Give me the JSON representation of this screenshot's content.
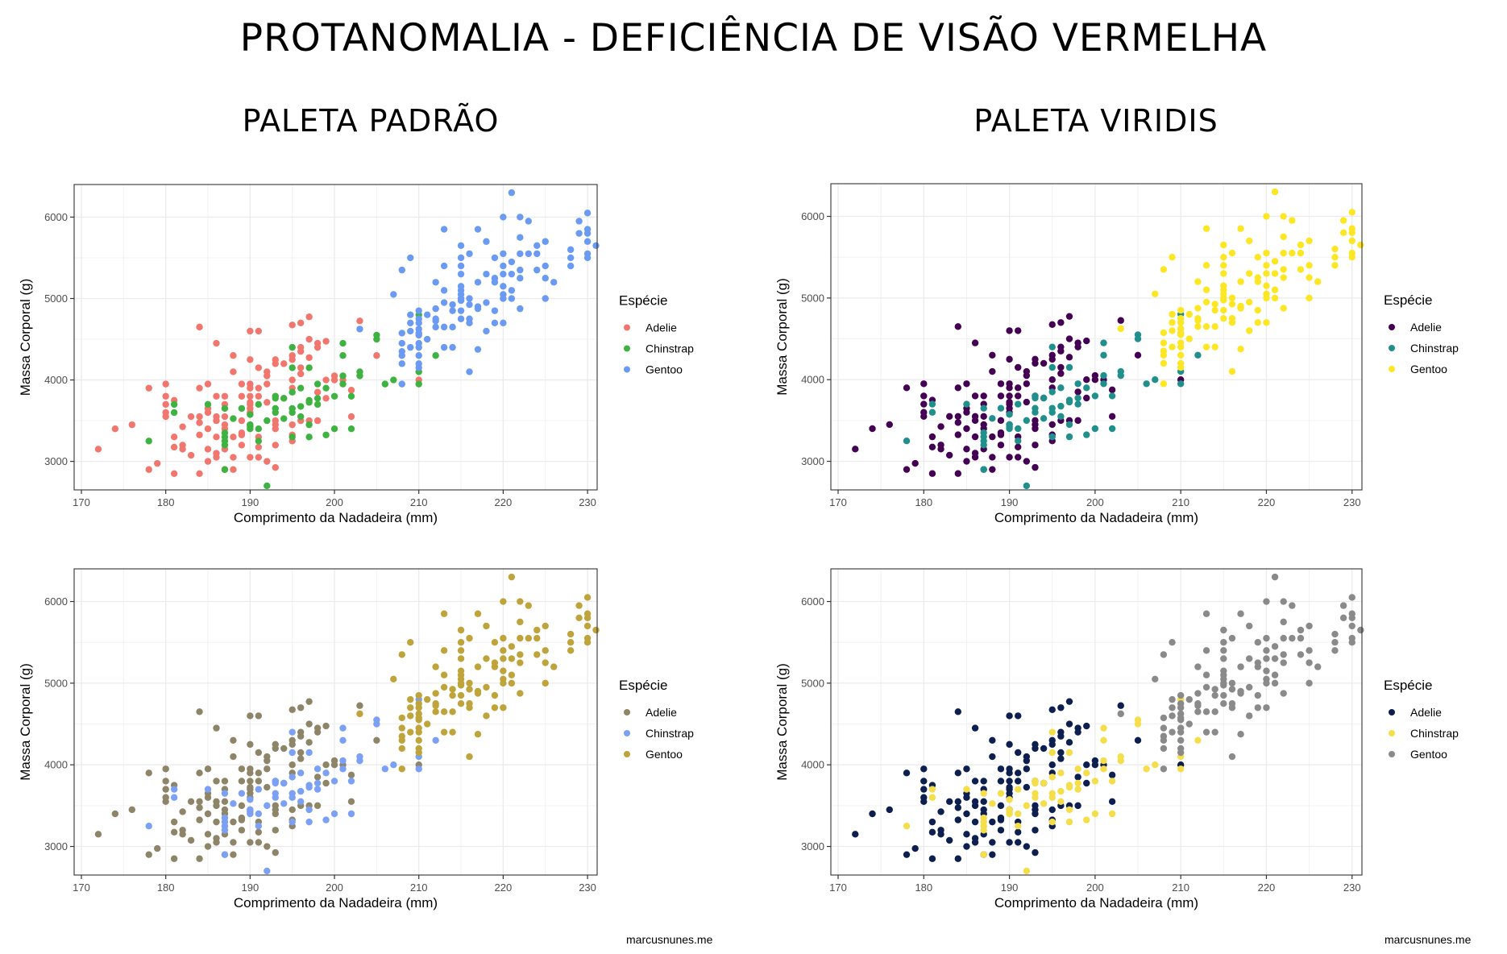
{
  "title": "PROTANOMALIA - DEFICIÊNCIA DE VISÃO VERMELHA",
  "columns": [
    "PALETA PADRÃO",
    "PALETA VIRIDIS"
  ],
  "credit": "marcusnunes.me",
  "chart_data": [
    {
      "id": "default-normal",
      "type": "scatter",
      "xlabel": "Comprimento da Nadadeira (mm)",
      "ylabel": "Massa Corporal (g)",
      "xlim": [
        170,
        232
      ],
      "ylim": [
        2650,
        6400
      ],
      "xticks": [
        170,
        180,
        190,
        200,
        210,
        220,
        230
      ],
      "yticks": [
        3000,
        4000,
        5000,
        6000
      ],
      "grid": true,
      "legend": {
        "title": "Espécie",
        "position": "right"
      },
      "series_colors": {
        "Adelie": "#F1766D",
        "Chinstrap": "#3FB341",
        "Gentoo": "#6A9AF2"
      }
    },
    {
      "id": "viridis-normal",
      "type": "scatter",
      "xlabel": "Comprimento da Nadadeira (mm)",
      "ylabel": "Massa Corporal (g)",
      "xlim": [
        170,
        232
      ],
      "ylim": [
        2650,
        6400
      ],
      "xticks": [
        170,
        180,
        190,
        200,
        210,
        220,
        230
      ],
      "yticks": [
        3000,
        4000,
        5000,
        6000
      ],
      "grid": true,
      "legend": {
        "title": "Espécie",
        "position": "right"
      },
      "series_colors": {
        "Adelie": "#440154",
        "Chinstrap": "#21908C",
        "Gentoo": "#FDE725"
      }
    },
    {
      "id": "default-protan",
      "type": "scatter",
      "xlabel": "Comprimento da Nadadeira (mm)",
      "ylabel": "Massa Corporal (g)",
      "xlim": [
        170,
        232
      ],
      "ylim": [
        2650,
        6400
      ],
      "xticks": [
        170,
        180,
        190,
        200,
        210,
        220,
        230
      ],
      "yticks": [
        3000,
        4000,
        5000,
        6000
      ],
      "grid": true,
      "legend": {
        "title": "Espécie",
        "position": "right"
      },
      "series_colors": {
        "Adelie": "#8E8468",
        "Chinstrap": "#7BA0F4",
        "Gentoo": "#BFA43B"
      }
    },
    {
      "id": "viridis-protan",
      "type": "scatter",
      "xlabel": "Comprimento da Nadadeira (mm)",
      "ylabel": "Massa Corporal (g)",
      "xlim": [
        170,
        232
      ],
      "ylim": [
        2650,
        6400
      ],
      "xticks": [
        170,
        180,
        190,
        200,
        210,
        220,
        230
      ],
      "yticks": [
        3000,
        4000,
        5000,
        6000
      ],
      "grid": true,
      "legend": {
        "title": "Espécie",
        "position": "right"
      },
      "series_colors": {
        "Adelie": "#0D1F4E",
        "Chinstrap": "#F5DE4C",
        "Gentoo": "#8A8A8A"
      }
    }
  ],
  "series": [
    {
      "name": "Adelie",
      "points": [
        [
          172,
          3150
        ],
        [
          174,
          3400
        ],
        [
          176,
          3450
        ],
        [
          178,
          3900
        ],
        [
          178,
          2900
        ],
        [
          179,
          2975
        ],
        [
          180,
          3950
        ],
        [
          180,
          3800
        ],
        [
          180,
          3700
        ],
        [
          180,
          3600
        ],
        [
          180,
          3550
        ],
        [
          181,
          3750
        ],
        [
          181,
          3300
        ],
        [
          181,
          3175
        ],
        [
          181,
          2850
        ],
        [
          182,
          3200
        ],
        [
          182,
          3150
        ],
        [
          182,
          3425
        ],
        [
          183,
          3550
        ],
        [
          183,
          3075
        ],
        [
          184,
          4650
        ],
        [
          184,
          3900
        ],
        [
          184,
          3550
        ],
        [
          184,
          3475
        ],
        [
          184,
          3325
        ],
        [
          184,
          2850
        ],
        [
          185,
          3950
        ],
        [
          185,
          3650
        ],
        [
          185,
          3600
        ],
        [
          185,
          3400
        ],
        [
          185,
          3150
        ],
        [
          185,
          3000
        ],
        [
          186,
          4450
        ],
        [
          186,
          3800
        ],
        [
          186,
          3550
        ],
        [
          186,
          3500
        ],
        [
          186,
          3300
        ],
        [
          186,
          3100
        ],
        [
          186,
          3050
        ],
        [
          187,
          3800
        ],
        [
          187,
          3700
        ],
        [
          187,
          3550
        ],
        [
          187,
          3450
        ],
        [
          187,
          3400
        ],
        [
          187,
          3150
        ],
        [
          187,
          2900
        ],
        [
          188,
          4300
        ],
        [
          188,
          4100
        ],
        [
          188,
          3300
        ],
        [
          188,
          3050
        ],
        [
          188,
          2900
        ],
        [
          189,
          3950
        ],
        [
          189,
          3800
        ],
        [
          189,
          3500
        ],
        [
          189,
          3350
        ],
        [
          189,
          3325
        ],
        [
          189,
          3200
        ],
        [
          190,
          4600
        ],
        [
          190,
          4250
        ],
        [
          190,
          3950
        ],
        [
          190,
          3900
        ],
        [
          190,
          3800
        ],
        [
          190,
          3725
        ],
        [
          190,
          3700
        ],
        [
          190,
          3650
        ],
        [
          190,
          3600
        ],
        [
          190,
          3450
        ],
        [
          190,
          3050
        ],
        [
          191,
          4600
        ],
        [
          191,
          4150
        ],
        [
          191,
          3900
        ],
        [
          191,
          3800
        ],
        [
          191,
          3300
        ],
        [
          191,
          3175
        ],
        [
          191,
          3050
        ],
        [
          192,
          4100
        ],
        [
          192,
          4050
        ],
        [
          192,
          3950
        ],
        [
          192,
          3725
        ],
        [
          192,
          3000
        ],
        [
          193,
          4250
        ],
        [
          193,
          4200
        ],
        [
          193,
          3800
        ],
        [
          193,
          3500
        ],
        [
          193,
          3450
        ],
        [
          193,
          3400
        ],
        [
          193,
          3200
        ],
        [
          193,
          2925
        ],
        [
          194,
          4200
        ],
        [
          194,
          3775
        ],
        [
          195,
          4675
        ],
        [
          195,
          4300
        ],
        [
          195,
          4250
        ],
        [
          195,
          4000
        ],
        [
          195,
          3900
        ],
        [
          195,
          3450
        ],
        [
          195,
          3325
        ],
        [
          195,
          3250
        ],
        [
          196,
          4700
        ],
        [
          196,
          4400
        ],
        [
          196,
          4350
        ],
        [
          196,
          4150
        ],
        [
          196,
          4075
        ],
        [
          196,
          3500
        ],
        [
          197,
          4775
        ],
        [
          197,
          4500
        ],
        [
          197,
          4275
        ],
        [
          197,
          3500
        ],
        [
          198,
          4450
        ],
        [
          198,
          4400
        ],
        [
          198,
          3850
        ],
        [
          198,
          3500
        ],
        [
          199,
          4475
        ],
        [
          199,
          4000
        ],
        [
          199,
          3775
        ],
        [
          200,
          4050
        ],
        [
          200,
          4000
        ],
        [
          201,
          4000
        ],
        [
          202,
          3875
        ],
        [
          202,
          3550
        ],
        [
          203,
          4725
        ],
        [
          205,
          4300
        ],
        [
          210,
          4000
        ]
      ]
    },
    {
      "name": "Chinstrap",
      "points": [
        [
          178,
          3250
        ],
        [
          181,
          3700
        ],
        [
          181,
          3600
        ],
        [
          185,
          3700
        ],
        [
          187,
          3650
        ],
        [
          187,
          3350
        ],
        [
          187,
          3300
        ],
        [
          187,
          3250
        ],
        [
          187,
          3200
        ],
        [
          187,
          2900
        ],
        [
          188,
          3525
        ],
        [
          189,
          3650
        ],
        [
          190,
          3575
        ],
        [
          190,
          3450
        ],
        [
          190,
          3400
        ],
        [
          190,
          3425
        ],
        [
          191,
          3700
        ],
        [
          191,
          3400
        ],
        [
          191,
          3250
        ],
        [
          192,
          2700
        ],
        [
          192,
          3500
        ],
        [
          193,
          3800
        ],
        [
          193,
          3775
        ],
        [
          193,
          3650
        ],
        [
          193,
          3600
        ],
        [
          194,
          3775
        ],
        [
          194,
          3525
        ],
        [
          195,
          4400
        ],
        [
          195,
          4150
        ],
        [
          195,
          3850
        ],
        [
          195,
          3650
        ],
        [
          195,
          3600
        ],
        [
          195,
          3300
        ],
        [
          196,
          3900
        ],
        [
          196,
          3675
        ],
        [
          196,
          3550
        ],
        [
          197,
          4150
        ],
        [
          197,
          3750
        ],
        [
          197,
          3725
        ],
        [
          197,
          3450
        ],
        [
          197,
          3300
        ],
        [
          198,
          3950
        ],
        [
          198,
          3775
        ],
        [
          198,
          3700
        ],
        [
          199,
          3900
        ],
        [
          199,
          3325
        ],
        [
          200,
          3800
        ],
        [
          200,
          3400
        ],
        [
          201,
          4450
        ],
        [
          201,
          4300
        ],
        [
          201,
          4050
        ],
        [
          201,
          3950
        ],
        [
          202,
          3800
        ],
        [
          202,
          3400
        ],
        [
          203,
          4100
        ],
        [
          203,
          4050
        ],
        [
          205,
          4550
        ],
        [
          205,
          4500
        ],
        [
          206,
          3950
        ],
        [
          207,
          4000
        ],
        [
          210,
          4800
        ],
        [
          210,
          4100
        ],
        [
          210,
          3950
        ],
        [
          212,
          4300
        ]
      ]
    },
    {
      "name": "Gentoo",
      "points": [
        [
          203,
          4625
        ],
        [
          207,
          5050
        ],
        [
          208,
          5350
        ],
        [
          208,
          4575
        ],
        [
          208,
          4450
        ],
        [
          208,
          4350
        ],
        [
          208,
          4300
        ],
        [
          208,
          4200
        ],
        [
          208,
          3950
        ],
        [
          209,
          5500
        ],
        [
          209,
          4800
        ],
        [
          209,
          4700
        ],
        [
          209,
          4600
        ],
        [
          209,
          4400
        ],
        [
          210,
          4850
        ],
        [
          210,
          4750
        ],
        [
          210,
          4700
        ],
        [
          210,
          4625
        ],
        [
          210,
          4575
        ],
        [
          210,
          4550
        ],
        [
          210,
          4450
        ],
        [
          210,
          4400
        ],
        [
          210,
          4300
        ],
        [
          210,
          4200
        ],
        [
          210,
          4150
        ],
        [
          211,
          4800
        ],
        [
          211,
          4500
        ],
        [
          212,
          5200
        ],
        [
          212,
          4875
        ],
        [
          212,
          4750
        ],
        [
          212,
          4725
        ],
        [
          212,
          4650
        ],
        [
          213,
          5850
        ],
        [
          213,
          5400
        ],
        [
          213,
          5100
        ],
        [
          213,
          4950
        ],
        [
          213,
          4650
        ],
        [
          213,
          4400
        ],
        [
          214,
          4925
        ],
        [
          214,
          4850
        ],
        [
          214,
          4650
        ],
        [
          214,
          4400
        ],
        [
          215,
          5650
        ],
        [
          215,
          5500
        ],
        [
          215,
          5400
        ],
        [
          215,
          5300
        ],
        [
          215,
          5150
        ],
        [
          215,
          5100
        ],
        [
          215,
          5050
        ],
        [
          215,
          5000
        ],
        [
          215,
          4975
        ],
        [
          215,
          4850
        ],
        [
          215,
          4750
        ],
        [
          216,
          5550
        ],
        [
          216,
          5000
        ],
        [
          216,
          4925
        ],
        [
          216,
          4750
        ],
        [
          216,
          4700
        ],
        [
          216,
          4100
        ],
        [
          217,
          5850
        ],
        [
          217,
          5200
        ],
        [
          217,
          4900
        ],
        [
          217,
          4875
        ],
        [
          217,
          4375
        ],
        [
          218,
          5700
        ],
        [
          218,
          5300
        ],
        [
          218,
          4950
        ],
        [
          218,
          4600
        ],
        [
          219,
          5500
        ],
        [
          219,
          5250
        ],
        [
          219,
          5200
        ],
        [
          219,
          4850
        ],
        [
          219,
          4700
        ],
        [
          220,
          6000
        ],
        [
          220,
          5550
        ],
        [
          220,
          5400
        ],
        [
          220,
          5300
        ],
        [
          220,
          5150
        ],
        [
          220,
          5050
        ],
        [
          220,
          5000
        ],
        [
          220,
          4700
        ],
        [
          221,
          6300
        ],
        [
          221,
          5450
        ],
        [
          221,
          5300
        ],
        [
          221,
          5100
        ],
        [
          221,
          5000
        ],
        [
          222,
          6000
        ],
        [
          222,
          5750
        ],
        [
          222,
          5550
        ],
        [
          222,
          5350
        ],
        [
          222,
          5250
        ],
        [
          222,
          4875
        ],
        [
          223,
          5950
        ],
        [
          223,
          5550
        ],
        [
          224,
          5650
        ],
        [
          224,
          5550
        ],
        [
          224,
          5350
        ],
        [
          225,
          5700
        ],
        [
          225,
          5400
        ],
        [
          225,
          5250
        ],
        [
          225,
          5000
        ],
        [
          226,
          5200
        ],
        [
          228,
          5600
        ],
        [
          228,
          5500
        ],
        [
          228,
          5400
        ],
        [
          229,
          5950
        ],
        [
          229,
          5800
        ],
        [
          230,
          6050
        ],
        [
          230,
          5850
        ],
        [
          230,
          5800
        ],
        [
          230,
          5700
        ],
        [
          230,
          5550
        ],
        [
          230,
          5500
        ],
        [
          231,
          5650
        ]
      ]
    }
  ]
}
